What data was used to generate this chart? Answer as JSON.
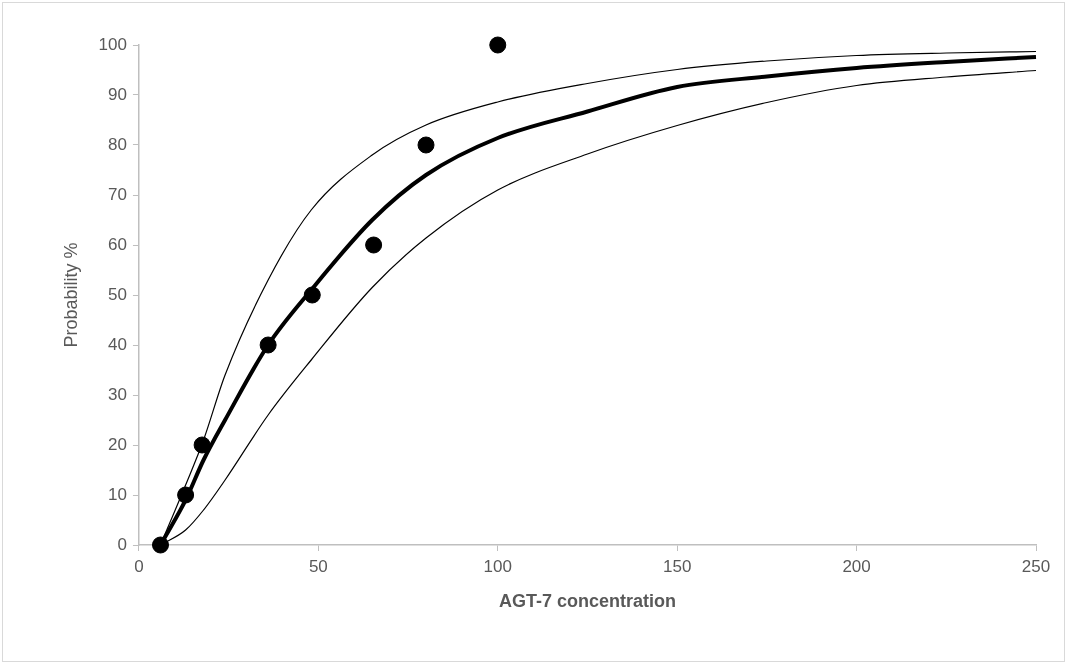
{
  "chart_data": {
    "type": "scatter",
    "xlabel": "AGT-7 concentration",
    "ylabel": "Probability %",
    "xlim": [
      0,
      250
    ],
    "xticks": [
      0,
      50,
      100,
      150,
      200,
      250
    ],
    "ylim": [
      0,
      100
    ],
    "yticks": [
      0,
      10,
      20,
      30,
      40,
      50,
      60,
      70,
      80,
      90,
      100
    ],
    "grid": false,
    "legend": false,
    "marker": "circle",
    "series": [
      {
        "type": "line",
        "marker": "none",
        "color": "#000000",
        "x": [
          6,
          13,
          18,
          24,
          36,
          48,
          65,
          80,
          100,
          125,
          150,
          175,
          200,
          225,
          250
        ],
        "values": [
          0,
          9,
          17,
          25,
          40,
          51,
          65,
          74,
          81.4,
          86.7,
          91.6,
          93.7,
          95.4,
          96.6,
          97.6
        ]
      },
      {
        "type": "line",
        "marker": "none",
        "color": "#000000",
        "x": [
          6,
          13,
          18,
          24,
          36,
          48,
          65,
          80,
          100,
          125,
          150,
          175,
          200,
          225,
          250
        ],
        "values": [
          0,
          12,
          21,
          34,
          53,
          67,
          78,
          84,
          88.6,
          92.3,
          95.1,
          96.8,
          97.9,
          98.4,
          98.7
        ]
      },
      {
        "type": "line",
        "marker": "none",
        "color": "#000000",
        "x": [
          6,
          13,
          18,
          24,
          36,
          48,
          65,
          80,
          100,
          125,
          150,
          175,
          200,
          225,
          250
        ],
        "values": [
          0,
          3,
          7,
          13,
          26,
          37,
          51.5,
          61.4,
          71,
          78.2,
          83.9,
          88.5,
          91.9,
          93.6,
          94.9
        ]
      },
      {
        "color": "#000000",
        "x": [
          6,
          13,
          17.6,
          36,
          48.3,
          65.4,
          80,
          100
        ],
        "values": [
          0,
          10,
          20,
          40,
          50,
          60,
          80,
          100
        ]
      }
    ]
  }
}
